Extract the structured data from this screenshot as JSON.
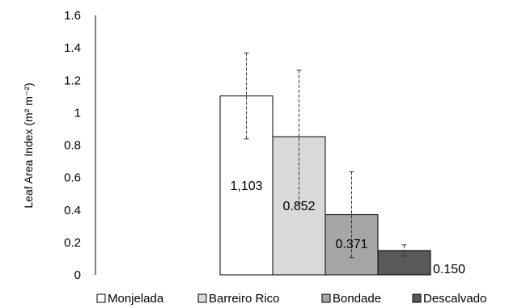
{
  "chart_data": {
    "type": "bar",
    "title": "",
    "xlabel": "",
    "ylabel": "Leaf Area Index (m² m⁻²)",
    "ylim": [
      0,
      1.6
    ],
    "yticks": [
      "0",
      "0.2",
      "0.4",
      "0.6",
      "0.8",
      "1",
      "1.2",
      "1.4",
      "1.6"
    ],
    "grid": false,
    "legend": "bottom",
    "series": [
      {
        "name": "Monjelada",
        "value": 1.103,
        "label": "1,103",
        "error": 0.265,
        "color": "#ffffff"
      },
      {
        "name": "Barreiro Rico",
        "value": 0.852,
        "label": "0.852",
        "error": 0.41,
        "color": "#d9d9d9"
      },
      {
        "name": "Bondade",
        "value": 0.371,
        "label": "0.371",
        "error": 0.265,
        "color": "#a6a6a6"
      },
      {
        "name": "Descalvado",
        "value": 0.15,
        "label": "0.150",
        "error": 0.035,
        "color": "#595959"
      }
    ]
  }
}
